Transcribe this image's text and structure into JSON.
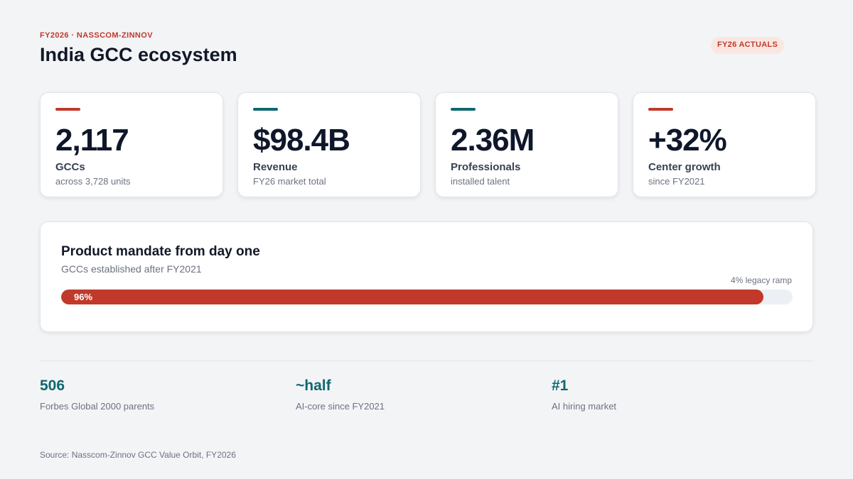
{
  "header": {
    "eyebrow": "FY2026 · NASSCOM-ZINNOV",
    "title": "India GCC ecosystem",
    "badge": "FY26 ACTUALS"
  },
  "kpis": [
    {
      "value": "2,117",
      "label": "GCCs",
      "sub": "across 3,728 units",
      "accent_color": "#c0392b"
    },
    {
      "value": "$98.4B",
      "label": "Revenue",
      "sub": "FY26 market total",
      "accent_color": "#0f6770"
    },
    {
      "value": "2.36M",
      "label": "Professionals",
      "sub": "installed talent",
      "accent_color": "#0f6770"
    },
    {
      "value": "+32%",
      "label": "Center growth",
      "sub": "since FY2021",
      "accent_color": "#c0392b"
    }
  ],
  "mandate": {
    "title": "Product mandate from day one",
    "subtitle": "GCCs established after FY2021",
    "note": "4% legacy ramp",
    "percent": 96,
    "percent_label": "96%",
    "bar_color": "#c0392b"
  },
  "stats": [
    {
      "value": "506",
      "label": "Forbes Global 2000 parents"
    },
    {
      "value": "~half",
      "label": "AI-core since FY2021"
    },
    {
      "value": "#1",
      "label": "AI hiring market"
    }
  ],
  "source": "Source: Nasscom-Zinnov GCC Value Orbit, FY2026",
  "colors": {
    "accent_red": "#c0392b",
    "accent_teal": "#0f6770",
    "background": "#f3f4f6"
  }
}
